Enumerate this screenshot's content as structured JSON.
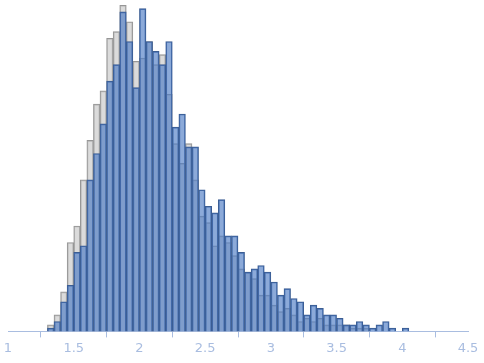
{
  "chart_data": {
    "type": "histogram",
    "bins": [
      1.3,
      1.35,
      1.4,
      1.45,
      1.5,
      1.55,
      1.6,
      1.65,
      1.7,
      1.75,
      1.8,
      1.85,
      1.9,
      1.95,
      2.0,
      2.05,
      2.1,
      2.15,
      2.2,
      2.25,
      2.3,
      2.35,
      2.4,
      2.45,
      2.5,
      2.55,
      2.6,
      2.65,
      2.7,
      2.75,
      2.8,
      2.85,
      2.9,
      2.95,
      3.0,
      3.05,
      3.1,
      3.15,
      3.2,
      3.25,
      3.3,
      3.35,
      3.4,
      3.45,
      3.5,
      3.55,
      3.6,
      3.65,
      3.7,
      3.75,
      3.8,
      3.85,
      3.9,
      3.95,
      4.0,
      4.05
    ],
    "series": [
      {
        "color": "#c8c8c8",
        "values": [
          2,
          5,
          12,
          27,
          32,
          46,
          58,
          69,
          73,
          89,
          91,
          99,
          94,
          82,
          83,
          88,
          81,
          84,
          72,
          57,
          51,
          57,
          46,
          35,
          33,
          26,
          29,
          27,
          23,
          19,
          18,
          16,
          11,
          11,
          8,
          6,
          7,
          5,
          3,
          4,
          3,
          4,
          2,
          2,
          2,
          2,
          1,
          1,
          1,
          0,
          0,
          0,
          0,
          0,
          0
        ]
      },
      {
        "color": "#4f7cc4",
        "values": [
          1,
          3,
          9,
          14,
          24,
          26,
          46,
          54,
          63,
          76,
          81,
          97,
          88,
          74,
          98,
          88,
          85,
          81,
          88,
          62,
          66,
          56,
          56,
          43,
          38,
          36,
          40,
          29,
          29,
          24,
          18,
          19,
          20,
          18,
          15,
          11,
          13,
          10,
          9,
          5,
          8,
          7,
          5,
          5,
          4,
          2,
          2,
          3,
          2,
          1,
          2,
          3,
          1,
          0,
          1
        ]
      }
    ],
    "xlim": [
      1,
      4.5
    ],
    "xticks": [
      1,
      1.5,
      2,
      2.5,
      3,
      3.5,
      4,
      4.5
    ],
    "ylim": [
      0,
      100
    ],
    "tick_labels": "x",
    "grid": false
  }
}
